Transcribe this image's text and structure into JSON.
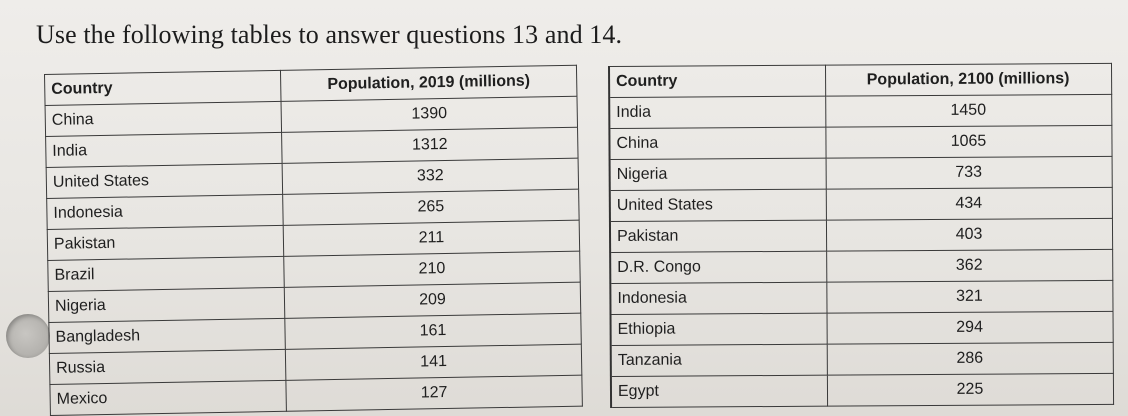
{
  "heading": "Use the following tables to answer questions 13 and 14.",
  "table_2019": {
    "header_country": "Country",
    "header_value": "Population, 2019 (millions)",
    "rows": [
      {
        "country": "China",
        "value": "1390"
      },
      {
        "country": "India",
        "value": "1312"
      },
      {
        "country": "United States",
        "value": "332"
      },
      {
        "country": "Indonesia",
        "value": "265"
      },
      {
        "country": "Pakistan",
        "value": "211"
      },
      {
        "country": "Brazil",
        "value": "210"
      },
      {
        "country": "Nigeria",
        "value": "209"
      },
      {
        "country": "Bangladesh",
        "value": "161"
      },
      {
        "country": "Russia",
        "value": "141"
      },
      {
        "country": "Mexico",
        "value": "127"
      }
    ]
  },
  "table_2100": {
    "header_country": "Country",
    "header_value": "Population, 2100 (millions)",
    "rows": [
      {
        "country": "India",
        "value": "1450"
      },
      {
        "country": "China",
        "value": "1065"
      },
      {
        "country": "Nigeria",
        "value": "733"
      },
      {
        "country": "United States",
        "value": "434"
      },
      {
        "country": "Pakistan",
        "value": "403"
      },
      {
        "country": "D.R. Congo",
        "value": "362"
      },
      {
        "country": "Indonesia",
        "value": "321"
      },
      {
        "country": "Ethiopia",
        "value": "294"
      },
      {
        "country": "Tanzania",
        "value": "286"
      },
      {
        "country": "Egypt",
        "value": "225"
      }
    ]
  }
}
